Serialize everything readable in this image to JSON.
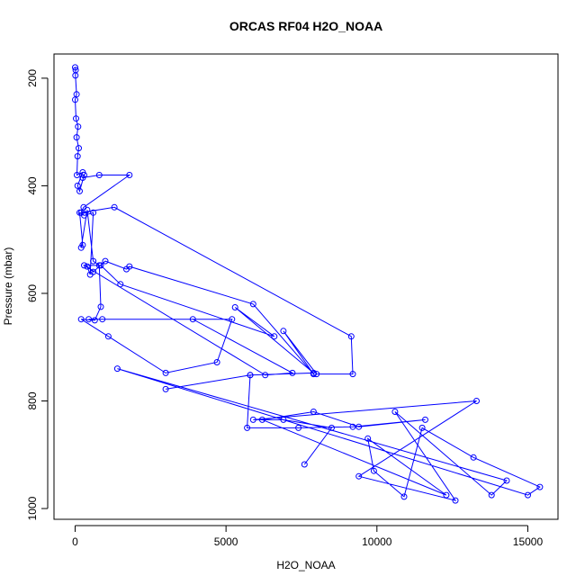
{
  "chart_data": {
    "type": "line",
    "title": "ORCAS RF04 H2O_NOAA",
    "xlabel": "H2O_NOAA",
    "ylabel": "Pressure (mbar)",
    "xlim": [
      -700,
      16000
    ],
    "ylim": [
      1020,
      155
    ],
    "y_reversed": true,
    "grid": false,
    "x_ticks": [
      0,
      5000,
      10000,
      15000
    ],
    "x_tick_labels": [
      "0",
      "5000",
      "10000",
      "15000"
    ],
    "y_ticks": [
      200,
      400,
      600,
      800,
      1000
    ],
    "y_tick_labels": [
      "200",
      "400",
      "600",
      "800",
      "1000"
    ],
    "series": [
      {
        "color": "#0000ff",
        "marker": "open-circle",
        "x": [
          0,
          20,
          10,
          50,
          0,
          30,
          100,
          50,
          120,
          80,
          60,
          250,
          80,
          150,
          300,
          250,
          800,
          1800,
          280,
          200,
          1300,
          9150,
          9200,
          8000,
          6900,
          7900,
          5900,
          1800,
          1700,
          1000,
          600,
          400,
          500,
          600,
          300,
          150,
          250,
          200,
          400,
          600,
          800,
          850,
          650,
          200,
          1100,
          3000,
          4700,
          5200,
          900,
          450,
          3900,
          7200,
          6300,
          300,
          850,
          1500,
          6600,
          5300,
          7900,
          5800,
          3000,
          5800,
          5700,
          7400,
          9200,
          11600,
          9400,
          7900,
          6200,
          12300,
          9700,
          9900,
          10900,
          11500,
          13200,
          15400,
          15000,
          1400,
          14300,
          13800,
          10600,
          12600,
          9400,
          13300,
          5900,
          6900,
          8500,
          7600
        ],
        "y": [
          180,
          185,
          195,
          230,
          240,
          275,
          290,
          310,
          330,
          345,
          380,
          375,
          400,
          410,
          380,
          385,
          380,
          380,
          440,
          450,
          440,
          680,
          750,
          750,
          670,
          750,
          620,
          550,
          555,
          540,
          560,
          550,
          565,
          450,
          455,
          450,
          510,
          515,
          445,
          540,
          548,
          625,
          650,
          648,
          680,
          748,
          728,
          648,
          648,
          648,
          648,
          748,
          752,
          548,
          548,
          583,
          680,
          626,
          748,
          752,
          778,
          752,
          850,
          850,
          848,
          835,
          848,
          820,
          835,
          975,
          870,
          930,
          978,
          850,
          905,
          960,
          975,
          740,
          948,
          975,
          820,
          985,
          940,
          800,
          835,
          835,
          850,
          918
        ]
      }
    ]
  }
}
